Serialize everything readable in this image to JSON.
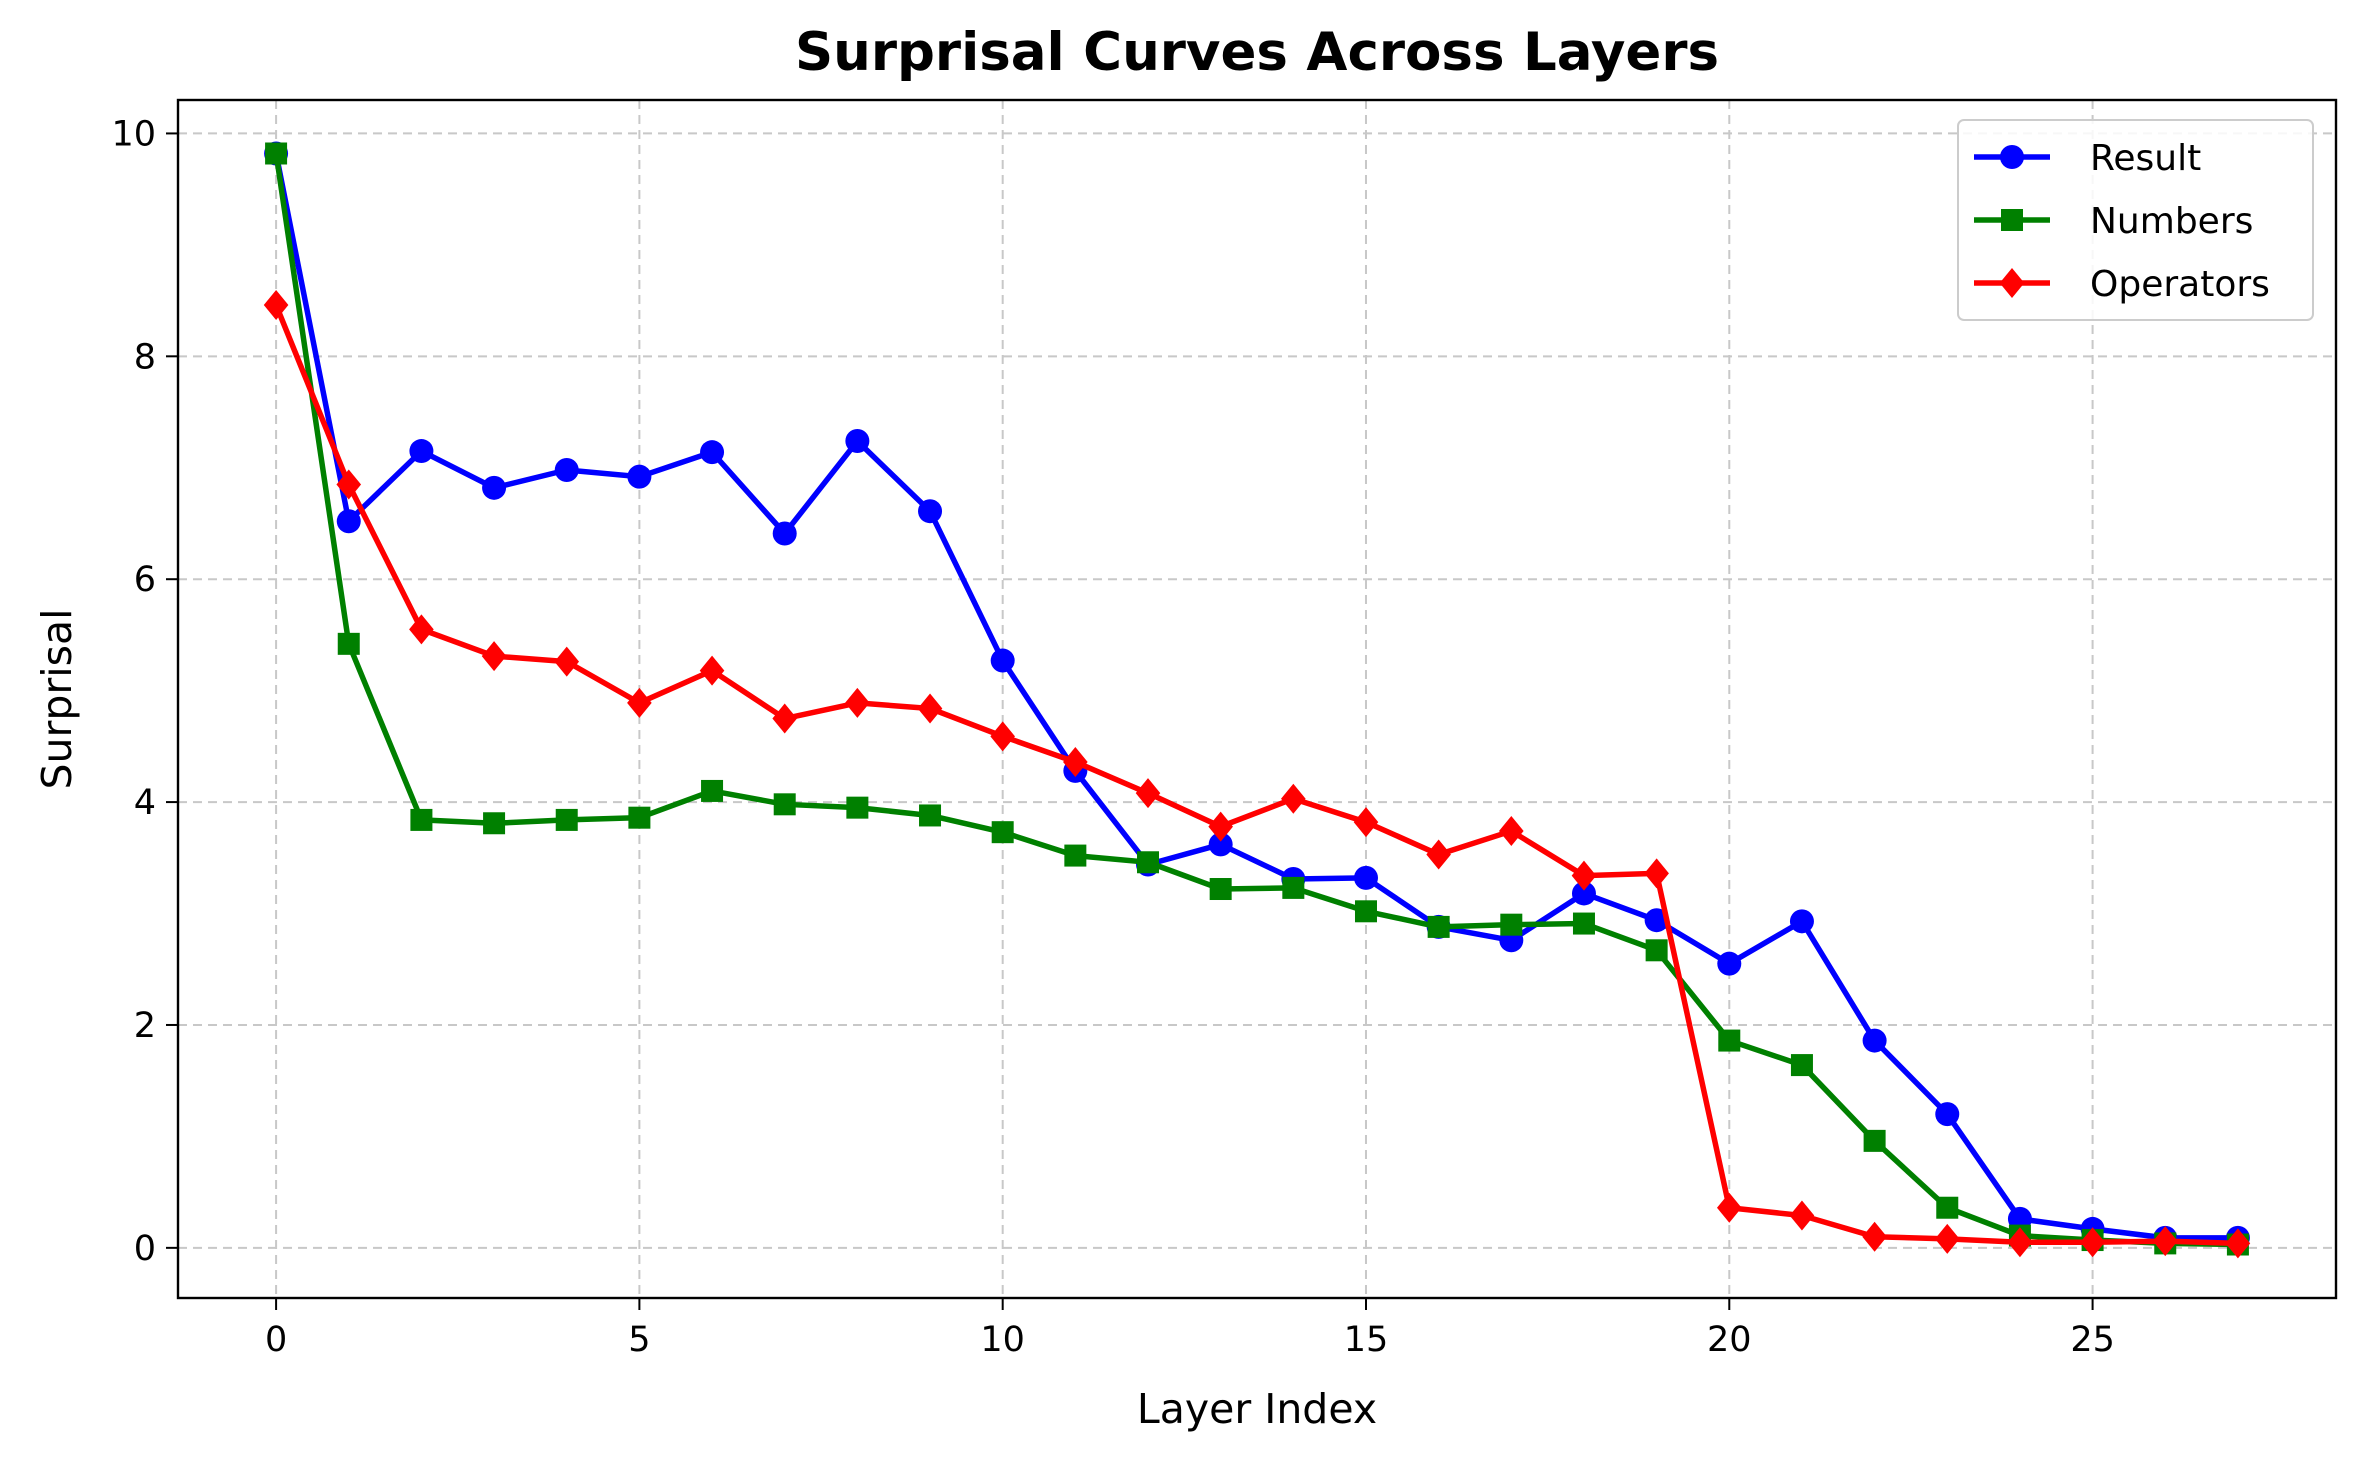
{
  "chart_data": {
    "type": "line",
    "title": "Surprisal Curves Across Layers",
    "xlabel": "Layer Index",
    "ylabel": "Surprisal",
    "xlim": [
      -1.35,
      28.35
    ],
    "ylim": [
      -0.45,
      10.3
    ],
    "xticks": [
      0,
      5,
      10,
      15,
      20,
      25
    ],
    "yticks": [
      0,
      2,
      4,
      6,
      8,
      10
    ],
    "grid": true,
    "legend_position": "top-right",
    "x": [
      0,
      1,
      2,
      3,
      4,
      5,
      6,
      7,
      8,
      9,
      10,
      11,
      12,
      13,
      14,
      15,
      16,
      17,
      18,
      19,
      20,
      21,
      22,
      23,
      24,
      25,
      26,
      27
    ],
    "series": [
      {
        "name": "Result",
        "color": "#0000ff",
        "marker": "circle",
        "values": [
          9.82,
          6.52,
          7.15,
          6.82,
          6.98,
          6.92,
          7.14,
          6.41,
          7.24,
          6.61,
          5.27,
          4.28,
          3.44,
          3.62,
          3.31,
          3.32,
          2.88,
          2.76,
          3.18,
          2.94,
          2.55,
          2.93,
          1.86,
          1.2,
          0.26,
          0.17,
          0.09,
          0.09
        ]
      },
      {
        "name": "Numbers",
        "color": "#008000",
        "marker": "square",
        "values": [
          9.82,
          5.42,
          3.84,
          3.81,
          3.84,
          3.86,
          4.1,
          3.98,
          3.95,
          3.88,
          3.73,
          3.52,
          3.46,
          3.22,
          3.23,
          3.02,
          2.88,
          2.9,
          2.91,
          2.67,
          1.86,
          1.64,
          0.96,
          0.36,
          0.11,
          0.07,
          0.04,
          0.03
        ]
      },
      {
        "name": "Operators",
        "color": "#ff0000",
        "marker": "diamond",
        "values": [
          8.46,
          6.85,
          5.55,
          5.31,
          5.26,
          4.89,
          5.18,
          4.75,
          4.89,
          4.84,
          4.59,
          4.36,
          4.08,
          3.78,
          4.03,
          3.82,
          3.53,
          3.74,
          3.34,
          3.36,
          0.36,
          0.29,
          0.1,
          0.08,
          0.05,
          0.05,
          0.06,
          0.04
        ]
      }
    ]
  }
}
